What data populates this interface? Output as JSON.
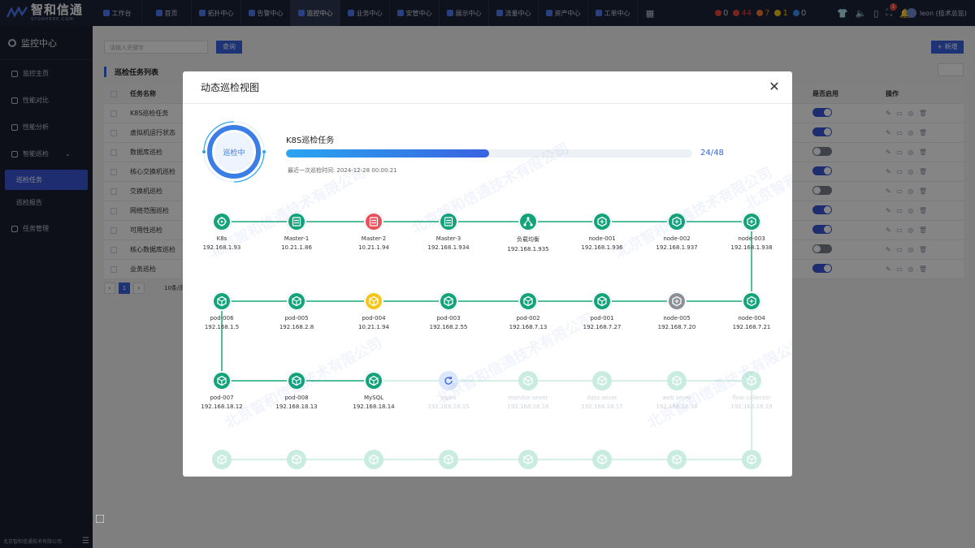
{
  "app": {
    "logo_title": "智和信通",
    "logo_sub": "SYGNHERE.COM"
  },
  "nav": {
    "items": [
      {
        "label": "工作台"
      },
      {
        "label": "首页"
      },
      {
        "label": "拓扑中心"
      },
      {
        "label": "告警中心"
      },
      {
        "label": "监控中心"
      },
      {
        "label": "业务中心"
      },
      {
        "label": "安管中心"
      },
      {
        "label": "展示中心"
      },
      {
        "label": "流量中心"
      },
      {
        "label": "资产中心"
      },
      {
        "label": "工单中心"
      }
    ],
    "active_index": 4
  },
  "alerts": {
    "critical": "0",
    "major": "44",
    "minor": "7",
    "warning": "1",
    "info": "0",
    "colors": [
      "#e8453c",
      "#e8453c",
      "#f07a2a",
      "#f5c518",
      "#3a8ef0"
    ]
  },
  "header": {
    "notify_count": "1",
    "user": "leon (技术总监)"
  },
  "sidebar": {
    "title": "监控中心",
    "items": [
      {
        "label": "监控主页"
      },
      {
        "label": "性能对比"
      },
      {
        "label": "性能分析"
      },
      {
        "label": "智能巡检"
      }
    ],
    "sub_items": [
      {
        "label": "巡检任务"
      },
      {
        "label": "巡检报告"
      }
    ],
    "last_item": "任务管理",
    "footer": "北京智和信通技术有限公司"
  },
  "page": {
    "search_placeholder": "请输入关键字",
    "query_label": "查询",
    "new_label": "+ 新增",
    "list_title": "巡检任务列表",
    "columns": {
      "name": "任务名称",
      "enabled": "是否启用",
      "ops": "操作"
    },
    "rows": [
      {
        "name": "K8S巡检任务",
        "enabled": true
      },
      {
        "name": "虚拟机运行状态",
        "enabled": true
      },
      {
        "name": "数据库巡检",
        "enabled": false
      },
      {
        "name": "核心交换机巡检",
        "enabled": true
      },
      {
        "name": "交换机巡检",
        "enabled": false
      },
      {
        "name": "网络范围巡检",
        "enabled": true
      },
      {
        "name": "可用性巡检",
        "enabled": true
      },
      {
        "name": "核心数据库巡检",
        "enabled": false
      },
      {
        "name": "业务巡检",
        "enabled": true
      }
    ],
    "pager_current": "1",
    "page_size": "10条/页"
  },
  "modal": {
    "title": "动态巡检视图",
    "status": "巡检中",
    "task_name": "K8S巡检任务",
    "progress_done": 24,
    "progress_total": 48,
    "progress_text": "24/48",
    "last_time_label": "最近一次巡检时间:",
    "last_time": "2024-12-28 00:00:21",
    "watermark": "北京智和信通技术有限公司",
    "colors": {
      "ok": "#12a37a",
      "error": "#e8505b",
      "warn": "#f5c518",
      "offline": "#8a8f98",
      "pending": "#c9ece0",
      "running": "#dbe7fb",
      "line": "#19a97c",
      "line_pending": "#c9ece0"
    },
    "nodes": [
      {
        "name": "K8s",
        "ip": "192.168.1.93",
        "icon": "k8s-icon",
        "status": "ok"
      },
      {
        "name": "Master-1",
        "ip": "10.21.1.86",
        "icon": "server-icon",
        "status": "ok"
      },
      {
        "name": "Master-2",
        "ip": "10.21.1.94",
        "icon": "server-icon",
        "status": "error"
      },
      {
        "name": "Master-3",
        "ip": "192.168.1.934",
        "icon": "server-icon",
        "status": "ok"
      },
      {
        "name": "负载均衡",
        "ip": "192.168.1.935",
        "icon": "balancer-icon",
        "status": "ok"
      },
      {
        "name": "node-001",
        "ip": "192.168.1.936",
        "icon": "node-icon",
        "status": "ok"
      },
      {
        "name": "node-002",
        "ip": "192.168.1.937",
        "icon": "node-icon",
        "status": "ok"
      },
      {
        "name": "node-003",
        "ip": "192.168.1.938",
        "icon": "node-icon",
        "status": "ok"
      },
      {
        "name": "node-004",
        "ip": "192.168.7.21",
        "icon": "node-icon",
        "status": "ok"
      },
      {
        "name": "node-005",
        "ip": "192.168.7.20",
        "icon": "node-icon",
        "status": "offline"
      },
      {
        "name": "pod-001",
        "ip": "192.168.7.27",
        "icon": "pod-icon",
        "status": "ok"
      },
      {
        "name": "pod-002",
        "ip": "192.168.7.13",
        "icon": "pod-icon",
        "status": "ok"
      },
      {
        "name": "pod-003",
        "ip": "192.168.2.55",
        "icon": "pod-icon",
        "status": "ok"
      },
      {
        "name": "pod-004",
        "ip": "10.21.1.94",
        "icon": "pod-icon",
        "status": "warn"
      },
      {
        "name": "pod-005",
        "ip": "192.168.2.8",
        "icon": "pod-icon",
        "status": "ok"
      },
      {
        "name": "pod-006",
        "ip": "192.168.1.5",
        "icon": "pod-icon",
        "status": "ok"
      },
      {
        "name": "pod-007",
        "ip": "192.168.18.12",
        "icon": "pod-icon",
        "status": "ok"
      },
      {
        "name": "pod-008",
        "ip": "192.168.18.13",
        "icon": "pod-icon",
        "status": "ok"
      },
      {
        "name": "MySQL",
        "ip": "192.168.18.14",
        "icon": "database-icon",
        "status": "ok"
      },
      {
        "name": "nginx",
        "ip": "192.168.18.15",
        "icon": "refresh-icon",
        "status": "running"
      },
      {
        "name": "monitor sever",
        "ip": "192.168.18.16",
        "icon": "pod-icon",
        "status": "pending"
      },
      {
        "name": "data sever",
        "ip": "192.168.18.17",
        "icon": "pod-icon",
        "status": "pending"
      },
      {
        "name": "web sever",
        "ip": "192.168.18.18",
        "icon": "pod-icon",
        "status": "pending"
      },
      {
        "name": "flow collector",
        "ip": "192.168.18.19",
        "icon": "pod-icon",
        "status": "pending"
      },
      {
        "name": "",
        "ip": "",
        "icon": "pod-icon",
        "status": "pending"
      },
      {
        "name": "",
        "ip": "",
        "icon": "pod-icon",
        "status": "pending"
      },
      {
        "name": "",
        "ip": "",
        "icon": "pod-icon",
        "status": "pending"
      },
      {
        "name": "",
        "ip": "",
        "icon": "pod-icon",
        "status": "pending"
      },
      {
        "name": "",
        "ip": "",
        "icon": "pod-icon",
        "status": "pending"
      },
      {
        "name": "",
        "ip": "",
        "icon": "pod-icon",
        "status": "pending"
      },
      {
        "name": "",
        "ip": "",
        "icon": "pod-icon",
        "status": "pending"
      },
      {
        "name": "",
        "ip": "",
        "icon": "pod-icon",
        "status": "pending"
      }
    ]
  }
}
